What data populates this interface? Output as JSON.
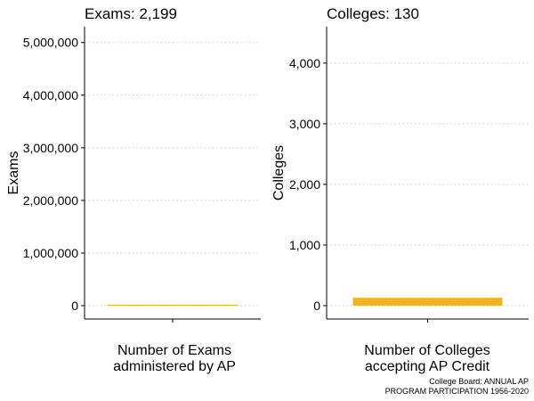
{
  "chart_data": [
    {
      "type": "bar",
      "title": "Exams: 2,199",
      "ylabel": "Exams",
      "xlabel_lines": [
        "Number of Exams",
        "administered by AP"
      ],
      "ylim": [
        0,
        5300000
      ],
      "yticks": [
        0,
        1000000,
        2000000,
        3000000,
        4000000,
        5000000
      ],
      "ytick_labels": [
        "0",
        "1,000,000",
        "2,000,000",
        "3,000,000",
        "4,000,000",
        "5,000,000"
      ],
      "categories": [
        ""
      ],
      "values": [
        2199
      ],
      "bar_color": "#F0B323",
      "grid": "horizontal-dotted"
    },
    {
      "type": "bar",
      "title": "Colleges: 130",
      "ylabel": "Colleges",
      "xlabel_lines": [
        "Number of Colleges",
        "accepting AP Credit"
      ],
      "ylim": [
        0,
        4600
      ],
      "yticks": [
        0,
        1000,
        2000,
        3000,
        4000
      ],
      "ytick_labels": [
        "0",
        "1,000",
        "2,000",
        "3,000",
        "4,000"
      ],
      "categories": [
        ""
      ],
      "values": [
        130
      ],
      "bar_color": "#F0B323",
      "grid": "horizontal-dotted"
    }
  ],
  "caption_lines": [
    "College Board: ANNUAL AP",
    "PROGRAM PARTICIPATION 1956-2020"
  ]
}
